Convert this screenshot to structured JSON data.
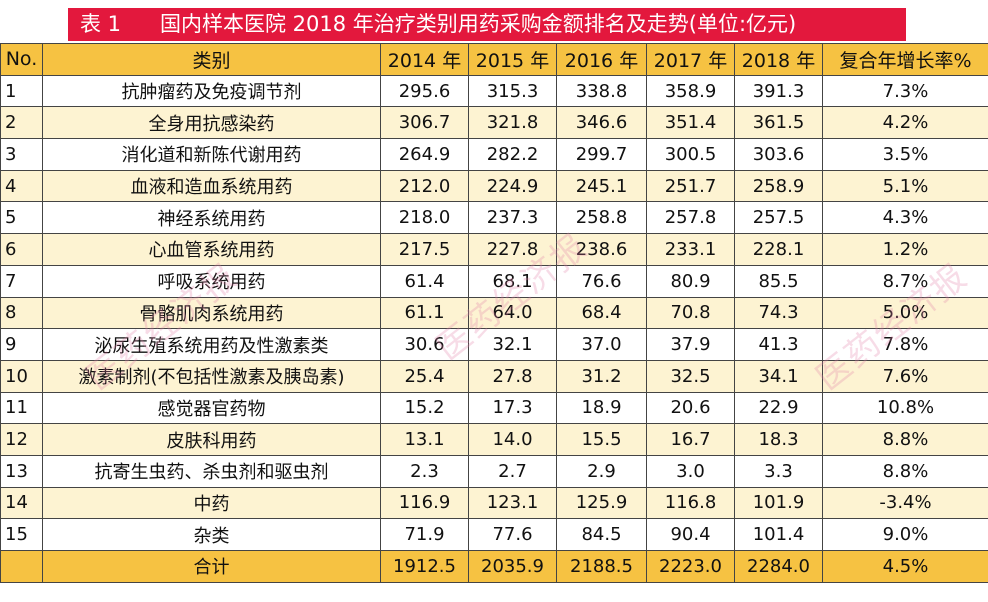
{
  "title": {
    "number": "表 1",
    "text": "国内样本医院 2018 年治疗类别用药采购金额排名及走势(单位:亿元)"
  },
  "headers": [
    "No.",
    "类别",
    "2014 年",
    "2015 年",
    "2016 年",
    "2017 年",
    "2018 年",
    "复合年增长率%"
  ],
  "rows": [
    {
      "no": "1",
      "category": "抗肿瘤药及免疫调节剂",
      "y2014": "295.6",
      "y2015": "315.3",
      "y2016": "338.8",
      "y2017": "358.9",
      "y2018": "391.3",
      "cagr": "7.3%"
    },
    {
      "no": "2",
      "category": "全身用抗感染药",
      "y2014": "306.7",
      "y2015": "321.8",
      "y2016": "346.6",
      "y2017": "351.4",
      "y2018": "361.5",
      "cagr": "4.2%"
    },
    {
      "no": "3",
      "category": "消化道和新陈代谢用药",
      "y2014": "264.9",
      "y2015": "282.2",
      "y2016": "299.7",
      "y2017": "300.5",
      "y2018": "303.6",
      "cagr": "3.5%"
    },
    {
      "no": "4",
      "category": "血液和造血系统用药",
      "y2014": "212.0",
      "y2015": "224.9",
      "y2016": "245.1",
      "y2017": "251.7",
      "y2018": "258.9",
      "cagr": "5.1%"
    },
    {
      "no": "5",
      "category": "神经系统用药",
      "y2014": "218.0",
      "y2015": "237.3",
      "y2016": "258.8",
      "y2017": "257.8",
      "y2018": "257.5",
      "cagr": "4.3%"
    },
    {
      "no": "6",
      "category": "心血管系统用药",
      "y2014": "217.5",
      "y2015": "227.8",
      "y2016": "238.6",
      "y2017": "233.1",
      "y2018": "228.1",
      "cagr": "1.2%"
    },
    {
      "no": "7",
      "category": "呼吸系统用药",
      "y2014": "61.4",
      "y2015": "68.1",
      "y2016": "76.6",
      "y2017": "80.9",
      "y2018": "85.5",
      "cagr": "8.7%"
    },
    {
      "no": "8",
      "category": "骨骼肌肉系统用药",
      "y2014": "61.1",
      "y2015": "64.0",
      "y2016": "68.4",
      "y2017": "70.8",
      "y2018": "74.3",
      "cagr": "5.0%"
    },
    {
      "no": "9",
      "category": "泌尿生殖系统用药及性激素类",
      "y2014": "30.6",
      "y2015": "32.1",
      "y2016": "37.0",
      "y2017": "37.9",
      "y2018": "41.3",
      "cagr": "7.8%"
    },
    {
      "no": "10",
      "category": "激素制剂(不包括性激素及胰岛素)",
      "y2014": "25.4",
      "y2015": "27.8",
      "y2016": "31.2",
      "y2017": "32.5",
      "y2018": "34.1",
      "cagr": "7.6%"
    },
    {
      "no": "11",
      "category": "感觉器官药物",
      "y2014": "15.2",
      "y2015": "17.3",
      "y2016": "18.9",
      "y2017": "20.6",
      "y2018": "22.9",
      "cagr": "10.8%"
    },
    {
      "no": "12",
      "category": "皮肤科用药",
      "y2014": "13.1",
      "y2015": "14.0",
      "y2016": "15.5",
      "y2017": "16.7",
      "y2018": "18.3",
      "cagr": "8.8%"
    },
    {
      "no": "13",
      "category": "抗寄生虫药、杀虫剂和驱虫剂",
      "y2014": "2.3",
      "y2015": "2.7",
      "y2016": "2.9",
      "y2017": "3.0",
      "y2018": "3.3",
      "cagr": "8.8%"
    },
    {
      "no": "14",
      "category": "中药",
      "y2014": "116.9",
      "y2015": "123.1",
      "y2016": "125.9",
      "y2017": "116.8",
      "y2018": "101.9",
      "cagr": "-3.4%"
    },
    {
      "no": "15",
      "category": "杂类",
      "y2014": "71.9",
      "y2015": "77.6",
      "y2016": "84.5",
      "y2017": "90.4",
      "y2018": "101.4",
      "cagr": "9.0%"
    }
  ],
  "total": {
    "no": "",
    "category": "合计",
    "y2014": "1912.5",
    "y2015": "2035.9",
    "y2016": "2188.5",
    "y2017": "2223.0",
    "y2018": "2284.0",
    "cagr": "4.5%"
  },
  "watermark": "医药经济报",
  "colors": {
    "title_bg": "#e3183d",
    "header_bg": "#f6c242",
    "stripe_bg": "#fdf3d2"
  }
}
